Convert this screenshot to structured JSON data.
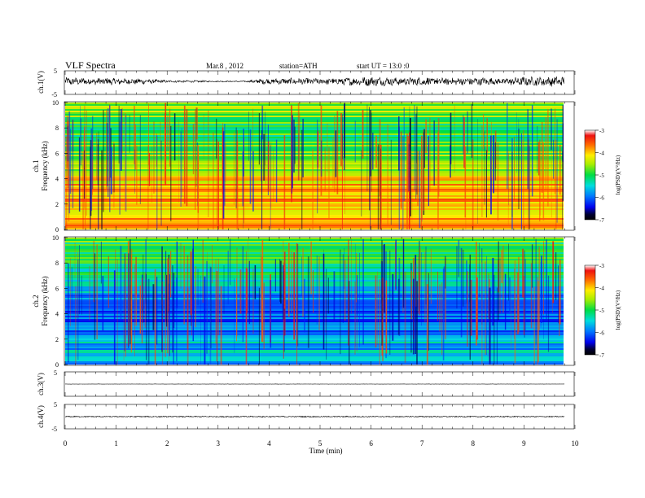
{
  "header": {
    "title": "VLF Spectra",
    "date": "Mar.8 , 2012",
    "station": "station=ATH",
    "start_time": "start UT = 13:0 :0"
  },
  "chart_data": {
    "type": "heatmap",
    "xlabel": "Time (min)",
    "xlim": [
      0,
      10
    ],
    "x_ticks": [
      "0",
      "1",
      "2",
      "3",
      "4",
      "5",
      "6",
      "7",
      "8",
      "9",
      "10"
    ],
    "data_end_min": 9.8,
    "panels": [
      {
        "id": "ch1-waveform",
        "type": "line",
        "ylabel": "ch.1(V)",
        "ylim": [
          -5,
          5
        ],
        "y_ticks": [
          "5",
          "-5"
        ],
        "baseline": 0.5,
        "envelope": [
          [
            0.0,
            1.5
          ],
          [
            0.5,
            1.2
          ],
          [
            1.0,
            1.3
          ],
          [
            1.5,
            1.0
          ],
          [
            1.9,
            0.6
          ],
          [
            2.0,
            0.4
          ],
          [
            2.7,
            0.35
          ],
          [
            2.85,
            0.2
          ],
          [
            3.6,
            0.25
          ],
          [
            3.7,
            0.9
          ],
          [
            4.5,
            1.2
          ],
          [
            5.0,
            1.1
          ],
          [
            5.5,
            1.4
          ],
          [
            6.0,
            1.7
          ],
          [
            6.5,
            1.4
          ],
          [
            7.0,
            1.6
          ],
          [
            7.5,
            1.3
          ],
          [
            8.0,
            1.5
          ],
          [
            8.5,
            1.2
          ],
          [
            9.0,
            1.6
          ],
          [
            9.8,
            1.8
          ]
        ]
      },
      {
        "id": "ch1-spectrogram",
        "type": "heatmap",
        "ylabel_channel": "ch.1",
        "ylabel": "Frequency (kHz)",
        "ylim": [
          0,
          10
        ],
        "y_ticks": [
          "0",
          "2",
          "4",
          "6",
          "8",
          "10"
        ],
        "colorbar": {
          "label": "log(PSD)(V²/Hz)",
          "range": [
            -7,
            -3
          ],
          "ticks": [
            "-3",
            "-4",
            "-5",
            "-6",
            "-7"
          ]
        },
        "frequency_profile_log_psd": [
          [
            0.0,
            -4.6
          ],
          [
            0.3,
            -3.4
          ],
          [
            0.6,
            -3.8
          ],
          [
            1.0,
            -4.0
          ],
          [
            1.5,
            -3.9
          ],
          [
            2.0,
            -4.1
          ],
          [
            2.5,
            -3.9
          ],
          [
            3.0,
            -4.0
          ],
          [
            3.5,
            -3.9
          ],
          [
            4.0,
            -4.2
          ],
          [
            4.5,
            -4.5
          ],
          [
            5.0,
            -4.3
          ],
          [
            5.5,
            -4.8
          ],
          [
            6.0,
            -4.7
          ],
          [
            7.0,
            -5.0
          ],
          [
            8.0,
            -4.9
          ],
          [
            9.0,
            -4.7
          ],
          [
            10.0,
            -4.5
          ]
        ]
      },
      {
        "id": "ch2-spectrogram",
        "type": "heatmap",
        "ylabel_channel": "ch.2",
        "ylabel": "Frequency (kHz)",
        "ylim": [
          0,
          10
        ],
        "y_ticks": [
          "0",
          "2",
          "4",
          "6",
          "8",
          "10"
        ],
        "colorbar": {
          "label": "log(PSD)(V²/Hz)",
          "range": [
            -7,
            -3
          ],
          "ticks": [
            "-3",
            "-4",
            "-5",
            "-6",
            "-7"
          ]
        },
        "frequency_profile_log_psd": [
          [
            0.0,
            -6.2
          ],
          [
            0.5,
            -5.4
          ],
          [
            1.0,
            -5.6
          ],
          [
            2.0,
            -5.7
          ],
          [
            3.0,
            -5.9
          ],
          [
            4.0,
            -6.2
          ],
          [
            5.0,
            -6.1
          ],
          [
            6.0,
            -5.6
          ],
          [
            7.0,
            -5.3
          ],
          [
            8.0,
            -5.1
          ],
          [
            9.0,
            -5.0
          ],
          [
            10.0,
            -4.9
          ]
        ]
      },
      {
        "id": "ch3-waveform",
        "type": "line",
        "ylabel": "ch.3(V)",
        "ylim": [
          -5,
          5
        ],
        "y_ticks": [
          "5"
        ],
        "baseline": 0.0,
        "envelope": [
          [
            0.0,
            0.05
          ],
          [
            9.8,
            0.05
          ]
        ]
      },
      {
        "id": "ch4-waveform",
        "type": "line",
        "ylabel": "ch.4(V)",
        "ylim": [
          -5,
          5
        ],
        "y_ticks": [
          "5",
          "-5"
        ],
        "baseline": 0.0,
        "envelope": [
          [
            0.0,
            0.2
          ],
          [
            9.8,
            0.2
          ]
        ]
      }
    ]
  }
}
